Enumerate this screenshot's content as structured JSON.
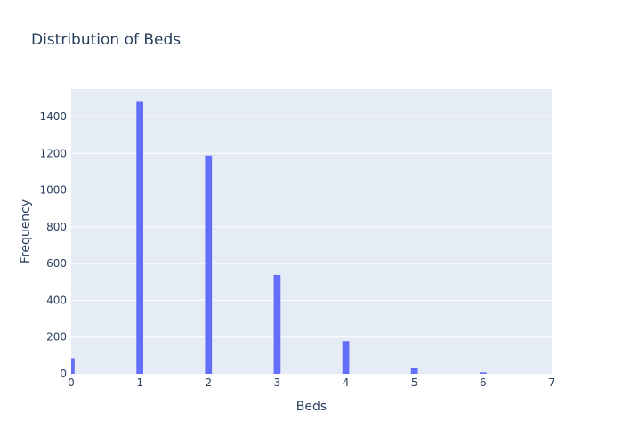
{
  "chart_data": {
    "type": "bar",
    "title": "Distribution of Beds",
    "xlabel": "Beds",
    "ylabel": "Frequency",
    "xlim": [
      0,
      7
    ],
    "ylim": [
      0,
      1550
    ],
    "x_ticks": [
      0,
      1,
      2,
      3,
      4,
      5,
      6,
      7
    ],
    "y_ticks": [
      0,
      200,
      400,
      600,
      800,
      1000,
      1200,
      1400
    ],
    "bin_width": 0.1,
    "bars": [
      {
        "x": 0,
        "value": 85
      },
      {
        "x": 1,
        "value": 1480
      },
      {
        "x": 2,
        "value": 1188
      },
      {
        "x": 3,
        "value": 538
      },
      {
        "x": 4,
        "value": 178
      },
      {
        "x": 5,
        "value": 32
      },
      {
        "x": 6,
        "value": 8
      }
    ],
    "grid": true,
    "colors": {
      "bar": "#636efa",
      "plot_bg": "#e5ecf6",
      "grid": "#ffffff",
      "text": "#2a3f5f"
    }
  }
}
